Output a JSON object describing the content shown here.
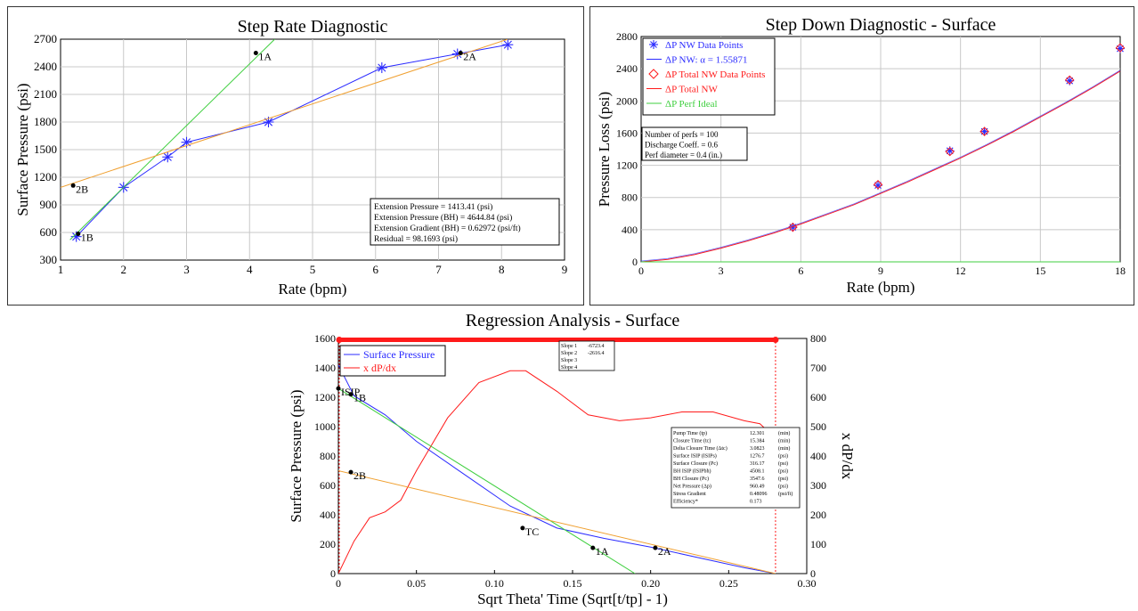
{
  "colors": {
    "blue": "#2b2bff",
    "orange": "#f0a030",
    "green": "#3fcf3f",
    "red": "#ff1a1a",
    "black": "#000000"
  },
  "chart_data": [
    {
      "type": "line",
      "title": "Step Rate Diagnostic",
      "xlabel": "Rate (bpm)",
      "ylabel": "Surface Pressure (psi)",
      "xlim": [
        1,
        9
      ],
      "ylim": [
        300,
        2700
      ],
      "xticks": [
        "1",
        "2",
        "3",
        "4",
        "5",
        "6",
        "7",
        "8",
        "9"
      ],
      "yticks": [
        "300",
        "600",
        "900",
        "1200",
        "1500",
        "1800",
        "2100",
        "2400",
        "2700"
      ],
      "grid": true,
      "series": [
        {
          "color": "blue",
          "style": "line-star",
          "x": [
            1.25,
            2.0,
            2.7,
            3.0,
            4.3,
            6.1,
            7.3,
            8.1
          ],
          "y": [
            555,
            1090,
            1420,
            1580,
            1800,
            2390,
            2540,
            2640
          ]
        },
        {
          "color": "green",
          "style": "line",
          "x": [
            1.15,
            4.4
          ],
          "y": [
            520,
            2700
          ]
        },
        {
          "color": "orange",
          "style": "line",
          "x": [
            1.0,
            8.1
          ],
          "y": [
            1090,
            2700
          ]
        }
      ],
      "markers": [
        {
          "label": "1A",
          "x": 4.1,
          "y": 2550
        },
        {
          "label": "2A",
          "x": 7.35,
          "y": 2550
        },
        {
          "label": "2B",
          "x": 1.2,
          "y": 1110
        },
        {
          "label": "1B",
          "x": 1.28,
          "y": 585
        }
      ],
      "infobox": [
        "Extension Pressure = 1413.41  (psi)",
        "Extension Pressure (BH) = 4644.84  (psi)",
        "Extension Gradient (BH) = 0.62972  (psi/ft)",
        "Residual = 98.1693  (psi)"
      ]
    },
    {
      "type": "line",
      "title": "Step Down Diagnostic - Surface",
      "xlabel": "Rate (bpm)",
      "ylabel": "Pressure Loss (psi)",
      "xlim": [
        0,
        18
      ],
      "ylim": [
        0,
        2800
      ],
      "xticks": [
        "0",
        "3",
        "6",
        "9",
        "12",
        "15",
        "18"
      ],
      "yticks": [
        "0",
        "400",
        "800",
        "1200",
        "1600",
        "2000",
        "2400",
        "2800"
      ],
      "grid": true,
      "legend": [
        {
          "label": "ΔP NW Data Points",
          "color": "blue",
          "symbol": "star"
        },
        {
          "label": "ΔP NW: α = 1.55871",
          "color": "blue",
          "symbol": "line"
        },
        {
          "label": "ΔP Total NW Data Points",
          "color": "red",
          "symbol": "diamond"
        },
        {
          "label": "ΔP Total NW",
          "color": "red",
          "symbol": "line"
        },
        {
          "label": "ΔP Perf Ideal",
          "color": "green",
          "symbol": "line"
        }
      ],
      "series": [
        {
          "name": "ΔP NW Data Points",
          "color": "blue",
          "style": "star",
          "x": [
            5.7,
            8.9,
            11.6,
            12.9,
            16.1,
            18.0
          ],
          "y": [
            430,
            950,
            1380,
            1620,
            2250,
            2650
          ]
        },
        {
          "name": "ΔP Total NW Data Points",
          "color": "red",
          "style": "diamond",
          "x": [
            5.7,
            8.9,
            11.6,
            12.9,
            16.1,
            18.0
          ],
          "y": [
            430,
            960,
            1370,
            1620,
            2260,
            2660
          ]
        },
        {
          "name": "ΔP Total NW",
          "color": "red",
          "style": "line",
          "x": [
            0,
            1,
            2,
            3,
            4,
            5,
            6,
            7,
            8,
            9,
            10,
            11,
            12,
            13,
            14,
            15,
            16,
            17,
            18
          ],
          "y": [
            0,
            30,
            90,
            170,
            260,
            360,
            470,
            590,
            710,
            850,
            990,
            1140,
            1290,
            1450,
            1620,
            1800,
            1980,
            2170,
            2370
          ]
        },
        {
          "name": "ΔP Perf Ideal",
          "color": "green",
          "style": "line",
          "x": [
            0,
            18
          ],
          "y": [
            0,
            0
          ]
        }
      ],
      "infobox": [
        "Number of perfs = 100",
        "Discharge Coeff. = 0.6",
        "Perf diameter = 0.4  (in.)"
      ]
    },
    {
      "type": "line",
      "title": "Regression Analysis - Surface",
      "xlabel": "Sqrt Theta' Time (Sqrt[t/tp] - 1)",
      "ylabel": "Surface Pressure (psi)",
      "y2label": "x dP/dx",
      "xlim": [
        0,
        0.3
      ],
      "ylim": [
        0,
        1600
      ],
      "y2lim": [
        0,
        800
      ],
      "xticks": [
        "0",
        "0.05",
        "0.10",
        "0.15",
        "0.20",
        "0.25",
        "0.30"
      ],
      "yticks": [
        "0",
        "200",
        "400",
        "600",
        "800",
        "1000",
        "1200",
        "1400",
        "1600"
      ],
      "y2ticks": [
        "0",
        "100",
        "200",
        "300",
        "400",
        "500",
        "600",
        "700",
        "800"
      ],
      "grid": false,
      "legend": [
        {
          "label": "Surface Pressure",
          "color": "blue"
        },
        {
          "label": "x dP/dx",
          "color": "red"
        }
      ],
      "series": [
        {
          "name": "Surface Pressure",
          "color": "blue",
          "axis": "left",
          "x": [
            0,
            0.01,
            0.03,
            0.05,
            0.08,
            0.11,
            0.14,
            0.17,
            0.2,
            0.23,
            0.26,
            0.28
          ],
          "y": [
            1420,
            1210,
            1080,
            900,
            680,
            460,
            310,
            240,
            180,
            110,
            40,
            0
          ]
        },
        {
          "name": "x dP/dx",
          "color": "red",
          "axis": "right",
          "x": [
            0,
            0.01,
            0.02,
            0.03,
            0.04,
            0.05,
            0.07,
            0.09,
            0.11,
            0.12,
            0.14,
            0.16,
            0.18,
            0.2,
            0.22,
            0.24,
            0.26,
            0.27,
            0.28
          ],
          "y": [
            0,
            110,
            190,
            210,
            250,
            350,
            530,
            650,
            690,
            690,
            620,
            540,
            520,
            530,
            550,
            550,
            520,
            510,
            460
          ]
        },
        {
          "color": "green",
          "axis": "left",
          "x": [
            0,
            0.19
          ],
          "y": [
            1260,
            0
          ]
        },
        {
          "color": "orange",
          "axis": "left",
          "x": [
            0,
            0.28
          ],
          "y": [
            700,
            0
          ]
        }
      ],
      "markers": [
        {
          "label": "ISIP",
          "x": 0.0,
          "y": 1260
        },
        {
          "label": "1B",
          "x": 0.008,
          "y": 1220
        },
        {
          "label": "2B",
          "x": 0.008,
          "y": 690
        },
        {
          "label": "TC",
          "x": 0.118,
          "y": 310
        },
        {
          "label": "1A",
          "x": 0.163,
          "y": 175
        },
        {
          "label": "2A",
          "x": 0.203,
          "y": 175
        }
      ],
      "slopes_box": [
        [
          "Slope 1",
          "-6723.4"
        ],
        [
          "Slope 2",
          "-2616.4"
        ],
        [
          "Slope 3",
          ""
        ],
        [
          "Slope 4",
          ""
        ]
      ],
      "results_table": [
        [
          "Pump Time (tp)",
          "12.301",
          "(min)"
        ],
        [
          "Closure Time (tc)",
          "15.384",
          "(min)"
        ],
        [
          "Delta Closure Time (Δtc)",
          "3.0823",
          "(min)"
        ],
        [
          "Surface ISIP (ISIPs)",
          "1276.7",
          "(psi)"
        ],
        [
          "Surface Closure (Pc)",
          "316.17",
          "(psi)"
        ],
        [
          "BH ISIP (ISIPbh)",
          "4508.1",
          "(psi)"
        ],
        [
          "BH Closure (Pc)",
          "3547.6",
          "(psi)"
        ],
        [
          "Net Pressure (Δp)",
          "960.49",
          "(psi)"
        ],
        [
          "Stress Gradient",
          "0.48096",
          "(psi/ft)"
        ],
        [
          "Efficiency*",
          "0.173",
          ""
        ]
      ]
    }
  ]
}
